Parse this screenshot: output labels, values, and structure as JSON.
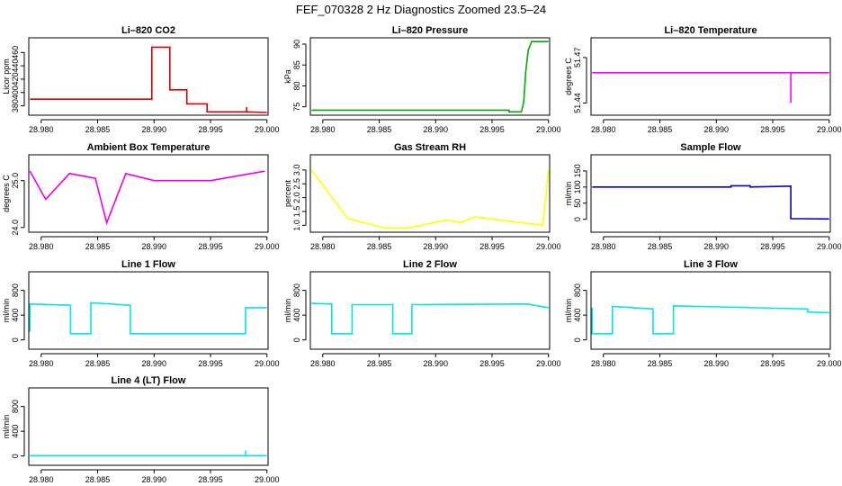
{
  "page_title": "FEF_070328  2 Hz Diagnostics Zoomed 23.5–24",
  "chart_data": [
    {
      "type": "line",
      "title": "Li–820 CO2",
      "ylabel": "Licor ppm",
      "color": "#dd0000",
      "xlim": [
        28.9789,
        29.0001
      ],
      "xticks": [
        28.98,
        28.985,
        28.99,
        28.995,
        29.0
      ],
      "xtick_labels": [
        "28.980",
        "28.985",
        "28.990",
        "28.995",
        "29.000"
      ],
      "ylim": [
        366,
        482
      ],
      "yticks": [
        380,
        400,
        420,
        440,
        460
      ],
      "ytick_labels": [
        "380",
        "400",
        "420",
        "440",
        "460"
      ],
      "x": [
        28.979,
        28.9898,
        28.9898,
        28.9914,
        28.9914,
        28.9929,
        28.9929,
        28.9947,
        28.9947,
        28.9982,
        28.9982,
        28.9982,
        28.9982,
        29.0
      ],
      "y": [
        390,
        390,
        468,
        468,
        404,
        404,
        383,
        383,
        371,
        371,
        378,
        372,
        371,
        370
      ]
    },
    {
      "type": "line",
      "title": "Li–820 Pressure",
      "ylabel": "kPa",
      "color": "#00aa00",
      "xlim": [
        28.9789,
        29.0001
      ],
      "xticks": [
        28.98,
        28.985,
        28.99,
        28.995,
        29.0
      ],
      "xtick_labels": [
        "28.980",
        "28.985",
        "28.990",
        "28.995",
        "29.000"
      ],
      "ylim": [
        73,
        91.5
      ],
      "yticks": [
        75,
        80,
        85,
        90
      ],
      "ytick_labels": [
        "75",
        "80",
        "85",
        "90"
      ],
      "x": [
        28.979,
        28.9965,
        28.9965,
        28.9976,
        28.9978,
        28.998,
        28.9982,
        28.9985,
        29.0
      ],
      "y": [
        74.2,
        74.2,
        73.8,
        73.8,
        76,
        84,
        88.5,
        90.6,
        90.6
      ]
    },
    {
      "type": "line",
      "title": "Li–820 Temperature",
      "ylabel": "degrees C",
      "color": "#ff00ff",
      "xlim": [
        28.9789,
        29.0001
      ],
      "xticks": [
        28.98,
        28.985,
        28.99,
        28.995,
        29.0
      ],
      "xtick_labels": [
        "28.980",
        "28.985",
        "28.990",
        "28.995",
        "29.000"
      ],
      "ylim": [
        51.432,
        51.483
      ],
      "yticks": [
        51.44,
        51.47
      ],
      "ytick_labels": [
        "51.44",
        "51.47"
      ],
      "x": [
        28.979,
        28.9966,
        28.9966,
        28.9966,
        29.0
      ],
      "y": [
        51.46,
        51.46,
        51.44,
        51.46,
        51.46
      ]
    },
    {
      "type": "line",
      "title": "Ambient Box Temperature",
      "ylabel": "degrees C",
      "color": "#ee00ee",
      "xlim": [
        28.9789,
        29.0001
      ],
      "xticks": [
        28.98,
        28.985,
        28.99,
        28.995,
        29.0
      ],
      "xtick_labels": [
        "28.980",
        "28.985",
        "28.990",
        "28.995",
        "29.000"
      ],
      "ylim": [
        23.9,
        25.55
      ],
      "yticks": [
        24.0,
        25.0
      ],
      "ytick_labels": [
        "24.0",
        "25.0"
      ],
      "x": [
        28.979,
        28.9804,
        28.9825,
        28.9848,
        28.9858,
        28.9875,
        28.99,
        28.995,
        28.9998
      ],
      "y": [
        25.2,
        24.6,
        25.15,
        25.05,
        24.1,
        25.15,
        25.0,
        25.0,
        25.2
      ]
    },
    {
      "type": "line",
      "title": "Gas Stream RH",
      "ylabel": "percent",
      "color": "#ffff00",
      "xlim": [
        28.9789,
        29.0001
      ],
      "xticks": [
        28.98,
        28.985,
        28.99,
        28.995,
        29.0
      ],
      "xtick_labels": [
        "28.980",
        "28.985",
        "28.990",
        "28.995",
        "29.000"
      ],
      "ylim": [
        0.75,
        3.55
      ],
      "yticks": [
        1.0,
        1.5,
        2.0,
        2.5,
        3.0
      ],
      "ytick_labels": [
        "1.0",
        "1.5",
        "2.0",
        "2.5",
        "3.0"
      ],
      "x": [
        28.979,
        28.9822,
        28.9855,
        28.9875,
        28.991,
        28.9922,
        28.9935,
        28.9995,
        29.0
      ],
      "y": [
        3.0,
        1.25,
        0.9,
        0.9,
        1.2,
        1.1,
        1.3,
        1.0,
        3.0
      ]
    },
    {
      "type": "line",
      "title": "Sample Flow",
      "ylabel": "ml/min",
      "color": "#0000cc",
      "xlim": [
        28.9789,
        29.0001
      ],
      "xticks": [
        28.98,
        28.985,
        28.99,
        28.995,
        29.0
      ],
      "xtick_labels": [
        "28.980",
        "28.985",
        "28.990",
        "28.995",
        "29.000"
      ],
      "ylim": [
        -40,
        200
      ],
      "yticks": [
        0,
        50,
        100,
        150
      ],
      "ytick_labels": [
        "0",
        "50",
        "100",
        "150"
      ],
      "x": [
        28.979,
        28.9913,
        28.9913,
        28.993,
        28.993,
        28.9966,
        28.9966,
        29.0
      ],
      "y": [
        100,
        100,
        104,
        104,
        100,
        103,
        2,
        1
      ]
    },
    {
      "type": "line",
      "title": "Line 1 Flow",
      "ylabel": "ml/min",
      "color": "#00e5ee",
      "xlim": [
        28.9789,
        29.0001
      ],
      "xticks": [
        28.98,
        28.985,
        28.99,
        28.995,
        29.0
      ],
      "xtick_labels": [
        "28.980",
        "28.985",
        "28.990",
        "28.995",
        "29.000"
      ],
      "ylim": [
        -150,
        1100
      ],
      "yticks": [
        0,
        400,
        800
      ],
      "ytick_labels": [
        "0",
        "400",
        "800"
      ],
      "x": [
        28.979,
        28.979,
        28.9826,
        28.9826,
        28.9844,
        28.9844,
        28.9879,
        28.9879,
        28.9981,
        28.9981,
        29.0
      ],
      "y": [
        130,
        580,
        560,
        100,
        100,
        600,
        560,
        100,
        100,
        520,
        520
      ]
    },
    {
      "type": "line",
      "title": "Line 2 Flow",
      "ylabel": "ml/min",
      "color": "#00e5ee",
      "xlim": [
        28.9789,
        29.0001
      ],
      "xticks": [
        28.98,
        28.985,
        28.99,
        28.995,
        29.0
      ],
      "xtick_labels": [
        "28.980",
        "28.985",
        "28.990",
        "28.995",
        "29.000"
      ],
      "ylim": [
        -150,
        1100
      ],
      "yticks": [
        0,
        400,
        800
      ],
      "ytick_labels": [
        "0",
        "400",
        "800"
      ],
      "x": [
        28.979,
        28.9808,
        28.9808,
        28.9826,
        28.9826,
        28.9862,
        28.9862,
        28.9879,
        28.9879,
        28.9981,
        29.0
      ],
      "y": [
        590,
        580,
        100,
        100,
        570,
        570,
        100,
        100,
        570,
        580,
        520
      ]
    },
    {
      "type": "line",
      "title": "Line 3 Flow",
      "ylabel": "ml/min",
      "color": "#00e5ee",
      "xlim": [
        28.9789,
        29.0001
      ],
      "xticks": [
        28.98,
        28.985,
        28.99,
        28.995,
        29.0
      ],
      "xtick_labels": [
        "28.980",
        "28.985",
        "28.990",
        "28.995",
        "29.000"
      ],
      "ylim": [
        -150,
        1100
      ],
      "yticks": [
        0,
        400,
        800
      ],
      "ytick_labels": [
        "0",
        "400",
        "800"
      ],
      "x": [
        28.979,
        28.979,
        28.9808,
        28.9808,
        28.9844,
        28.9844,
        28.9862,
        28.9862,
        28.9981,
        28.9981,
        29.0
      ],
      "y": [
        520,
        100,
        100,
        540,
        500,
        100,
        100,
        550,
        500,
        450,
        440
      ]
    },
    {
      "type": "line",
      "title": "Line 4 (LT) Flow",
      "ylabel": "ml/min",
      "color": "#00e5ee",
      "xlim": [
        28.9789,
        29.0001
      ],
      "xticks": [
        28.98,
        28.985,
        28.99,
        28.995,
        29.0
      ],
      "xtick_labels": [
        "28.980",
        "28.985",
        "28.990",
        "28.995",
        "29.000"
      ],
      "ylim": [
        -150,
        1100
      ],
      "yticks": [
        0,
        400,
        800
      ],
      "ytick_labels": [
        "0",
        "400",
        "800"
      ],
      "x": [
        28.979,
        28.9981,
        28.9981,
        28.9981,
        29.0
      ],
      "y": [
        5,
        5,
        90,
        5,
        5
      ]
    }
  ]
}
